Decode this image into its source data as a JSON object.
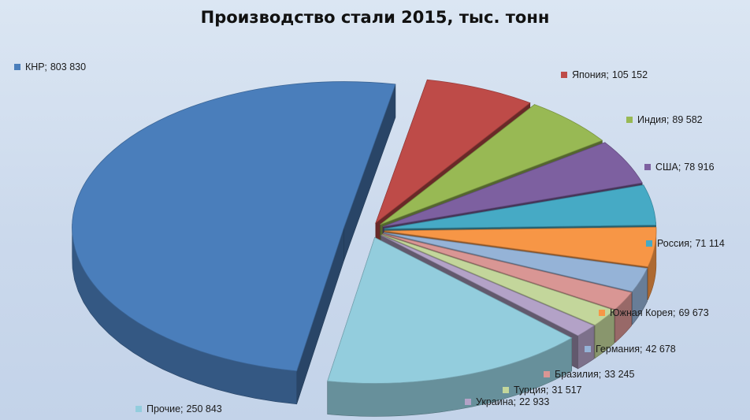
{
  "chart_data": {
    "type": "pie",
    "title": "Производство стали 2015, тыс. тонн",
    "three_d": true,
    "exploded": true,
    "slices": [
      {
        "label": "КНР",
        "value": 803830,
        "value_label": "803 830",
        "color": "#4a7ebb"
      },
      {
        "label": "Япония",
        "value": 105152,
        "value_label": "105 152",
        "color": "#be4b48"
      },
      {
        "label": "Индия",
        "value": 89582,
        "value_label": "89 582",
        "color": "#98b954"
      },
      {
        "label": "США",
        "value": 78916,
        "value_label": "78 916",
        "color": "#7d60a0"
      },
      {
        "label": "Россия",
        "value": 71114,
        "value_label": "71 114",
        "color": "#46aac5"
      },
      {
        "label": "Южная Корея",
        "value": 69673,
        "value_label": "69 673",
        "color": "#f79646"
      },
      {
        "label": "Германия",
        "value": 42678,
        "value_label": "42 678",
        "color": "#95b3d7"
      },
      {
        "label": "Бразилия",
        "value": 33245,
        "value_label": "33 245",
        "color": "#d99694"
      },
      {
        "label": "Турция",
        "value": 31517,
        "value_label": "31 517",
        "color": "#c3d69b"
      },
      {
        "label": "Украина",
        "value": 22933,
        "value_label": "22 933",
        "color": "#b3a2c7"
      },
      {
        "label": "Прочие",
        "value": 250843,
        "value_label": "250 843",
        "color": "#93cddd"
      }
    ]
  }
}
